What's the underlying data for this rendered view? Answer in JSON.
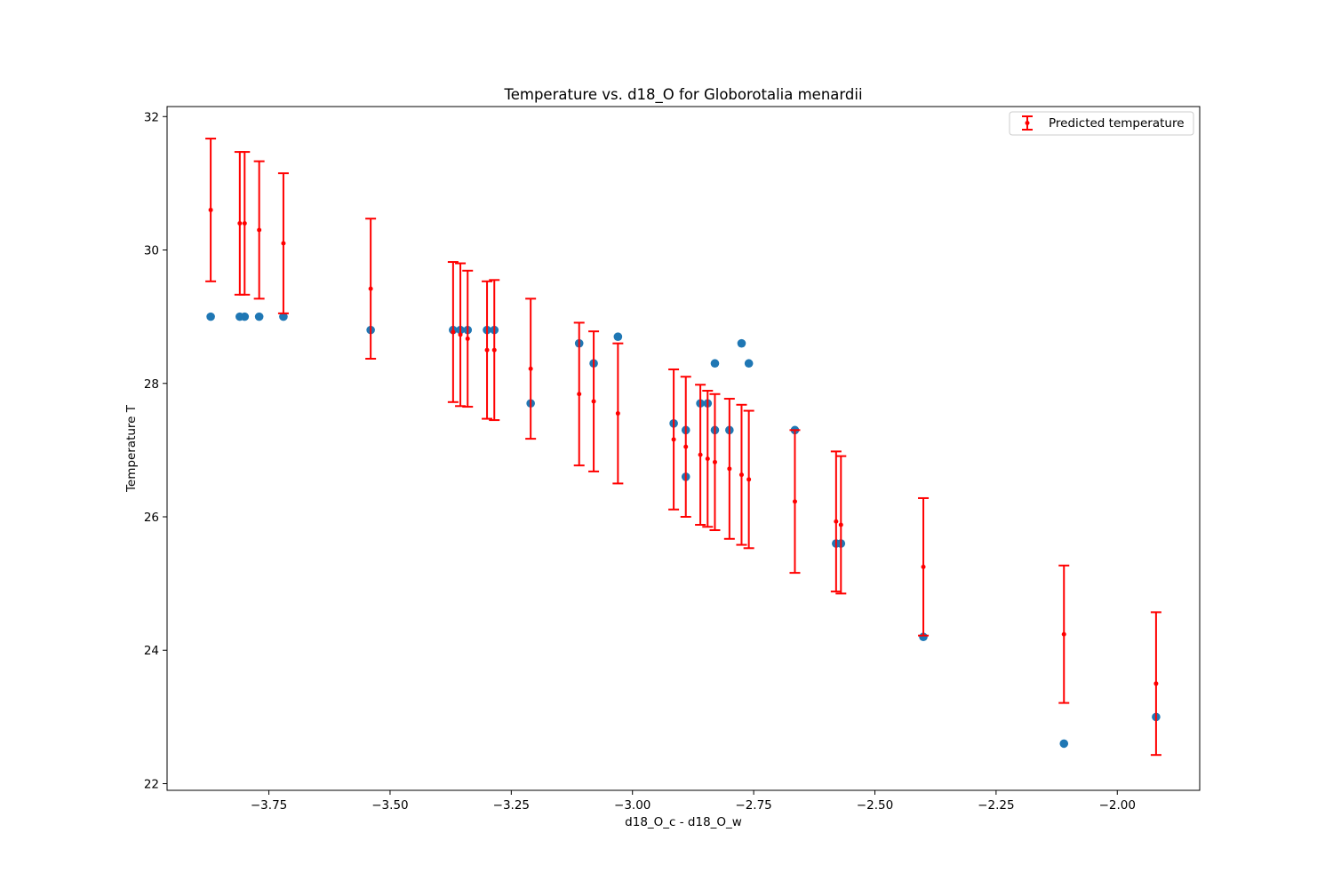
{
  "chart_data": {
    "type": "scatter",
    "title": "Temperature vs. d18_O for Globorotalia menardii",
    "xlabel": "d18_O_c - d18_O_w",
    "ylabel": "Temperature T",
    "xlim": [
      -3.96,
      -1.83
    ],
    "ylim": [
      21.9,
      32.15
    ],
    "xticks": [
      -3.75,
      -3.5,
      -3.25,
      -3.0,
      -2.75,
      -2.5,
      -2.25,
      -2.0
    ],
    "xtick_labels": [
      "−3.75",
      "−3.50",
      "−3.25",
      "−3.00",
      "−2.75",
      "−2.50",
      "−2.25",
      "−2.00"
    ],
    "yticks": [
      22,
      24,
      26,
      28,
      30,
      32
    ],
    "ytick_labels": [
      "22",
      "24",
      "26",
      "28",
      "30",
      "32"
    ],
    "grid": false,
    "legend": {
      "position": "upper right",
      "entries": [
        "Predicted temperature"
      ]
    },
    "series": [
      {
        "kind": "scatter",
        "color": "#1f77b4",
        "points": [
          {
            "x": -3.87,
            "y": 29.0
          },
          {
            "x": -3.81,
            "y": 29.0
          },
          {
            "x": -3.8,
            "y": 29.0
          },
          {
            "x": -3.77,
            "y": 29.0
          },
          {
            "x": -3.72,
            "y": 29.0
          },
          {
            "x": -3.54,
            "y": 28.8
          },
          {
            "x": -3.37,
            "y": 28.8
          },
          {
            "x": -3.355,
            "y": 28.8
          },
          {
            "x": -3.34,
            "y": 28.8
          },
          {
            "x": -3.3,
            "y": 28.8
          },
          {
            "x": -3.285,
            "y": 28.8
          },
          {
            "x": -3.21,
            "y": 27.7
          },
          {
            "x": -3.11,
            "y": 28.6
          },
          {
            "x": -3.08,
            "y": 28.3
          },
          {
            "x": -3.03,
            "y": 28.7
          },
          {
            "x": -2.915,
            "y": 27.4
          },
          {
            "x": -2.89,
            "y": 27.3
          },
          {
            "x": -2.89,
            "y": 26.6
          },
          {
            "x": -2.86,
            "y": 27.7
          },
          {
            "x": -2.845,
            "y": 27.7
          },
          {
            "x": -2.83,
            "y": 27.3
          },
          {
            "x": -2.83,
            "y": 28.3
          },
          {
            "x": -2.8,
            "y": 27.3
          },
          {
            "x": -2.775,
            "y": 28.6
          },
          {
            "x": -2.76,
            "y": 28.3
          },
          {
            "x": -2.665,
            "y": 27.3
          },
          {
            "x": -2.58,
            "y": 25.6
          },
          {
            "x": -2.57,
            "y": 25.6
          },
          {
            "x": -2.4,
            "y": 24.2
          },
          {
            "x": -2.11,
            "y": 22.6
          },
          {
            "x": -1.92,
            "y": 23.0
          }
        ]
      },
      {
        "name": "Predicted temperature",
        "kind": "errorbar",
        "color": "#ff0000",
        "points": [
          {
            "x": -3.87,
            "y": 30.6,
            "err": 1.07
          },
          {
            "x": -3.81,
            "y": 30.4,
            "err": 1.07
          },
          {
            "x": -3.8,
            "y": 30.4,
            "err": 1.07
          },
          {
            "x": -3.77,
            "y": 30.3,
            "err": 1.03
          },
          {
            "x": -3.72,
            "y": 30.1,
            "err": 1.05
          },
          {
            "x": -3.54,
            "y": 29.42,
            "err": 1.05
          },
          {
            "x": -3.37,
            "y": 28.77,
            "err": 1.05
          },
          {
            "x": -3.355,
            "y": 28.73,
            "err": 1.07
          },
          {
            "x": -3.34,
            "y": 28.67,
            "err": 1.02
          },
          {
            "x": -3.3,
            "y": 28.5,
            "err": 1.03
          },
          {
            "x": -3.285,
            "y": 28.5,
            "err": 1.05
          },
          {
            "x": -3.21,
            "y": 28.22,
            "err": 1.05
          },
          {
            "x": -3.11,
            "y": 27.84,
            "err": 1.07
          },
          {
            "x": -3.08,
            "y": 27.73,
            "err": 1.05
          },
          {
            "x": -3.03,
            "y": 27.55,
            "err": 1.05
          },
          {
            "x": -2.915,
            "y": 27.16,
            "err": 1.05
          },
          {
            "x": -2.89,
            "y": 27.05,
            "err": 1.05
          },
          {
            "x": -2.86,
            "y": 26.93,
            "err": 1.05
          },
          {
            "x": -2.845,
            "y": 26.87,
            "err": 1.02
          },
          {
            "x": -2.83,
            "y": 26.82,
            "err": 1.02
          },
          {
            "x": -2.8,
            "y": 26.72,
            "err": 1.05
          },
          {
            "x": -2.775,
            "y": 26.63,
            "err": 1.05
          },
          {
            "x": -2.76,
            "y": 26.56,
            "err": 1.03
          },
          {
            "x": -2.665,
            "y": 26.23,
            "err": 1.07
          },
          {
            "x": -2.58,
            "y": 25.93,
            "err": 1.05
          },
          {
            "x": -2.57,
            "y": 25.88,
            "err": 1.03
          },
          {
            "x": -2.4,
            "y": 25.25,
            "err": 1.03
          },
          {
            "x": -2.11,
            "y": 24.24,
            "err": 1.03
          },
          {
            "x": -1.92,
            "y": 23.5,
            "err": 1.07
          }
        ]
      }
    ]
  }
}
